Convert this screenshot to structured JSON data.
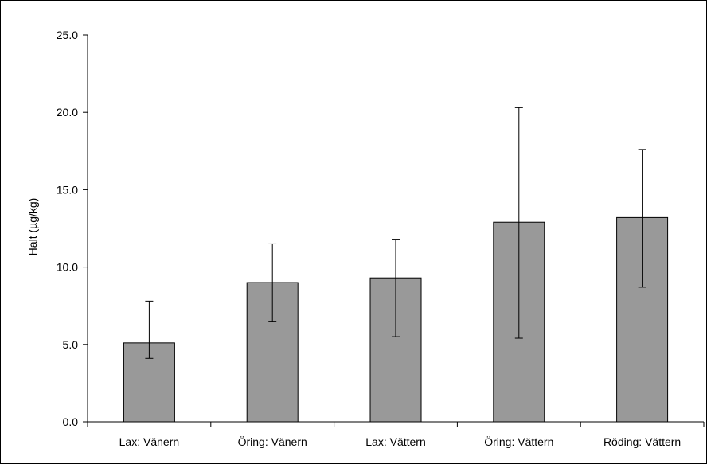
{
  "chart_data": {
    "type": "bar",
    "title": "",
    "xlabel": "",
    "ylabel": "Halt (µg/kg)",
    "ylim": [
      0,
      25
    ],
    "ytick_values": [
      0,
      5,
      10,
      15,
      20,
      25
    ],
    "ytick_labels": [
      "0.0",
      "5.0",
      "10.0",
      "15.0",
      "20.0",
      "25.0"
    ],
    "categories": [
      "Lax: Vänern",
      "Öring: Vänern",
      "Lax: Vättern",
      "Öring: Vättern",
      "Röding: Vättern"
    ],
    "values": [
      5.1,
      9.0,
      9.3,
      12.9,
      13.2
    ],
    "error_low": [
      4.1,
      6.5,
      5.5,
      5.4,
      8.7
    ],
    "error_high": [
      7.8,
      11.5,
      11.8,
      20.3,
      17.6
    ],
    "grid": false,
    "legend": "none",
    "bar_color": "#999999",
    "bar_edge_color": "#000000"
  }
}
